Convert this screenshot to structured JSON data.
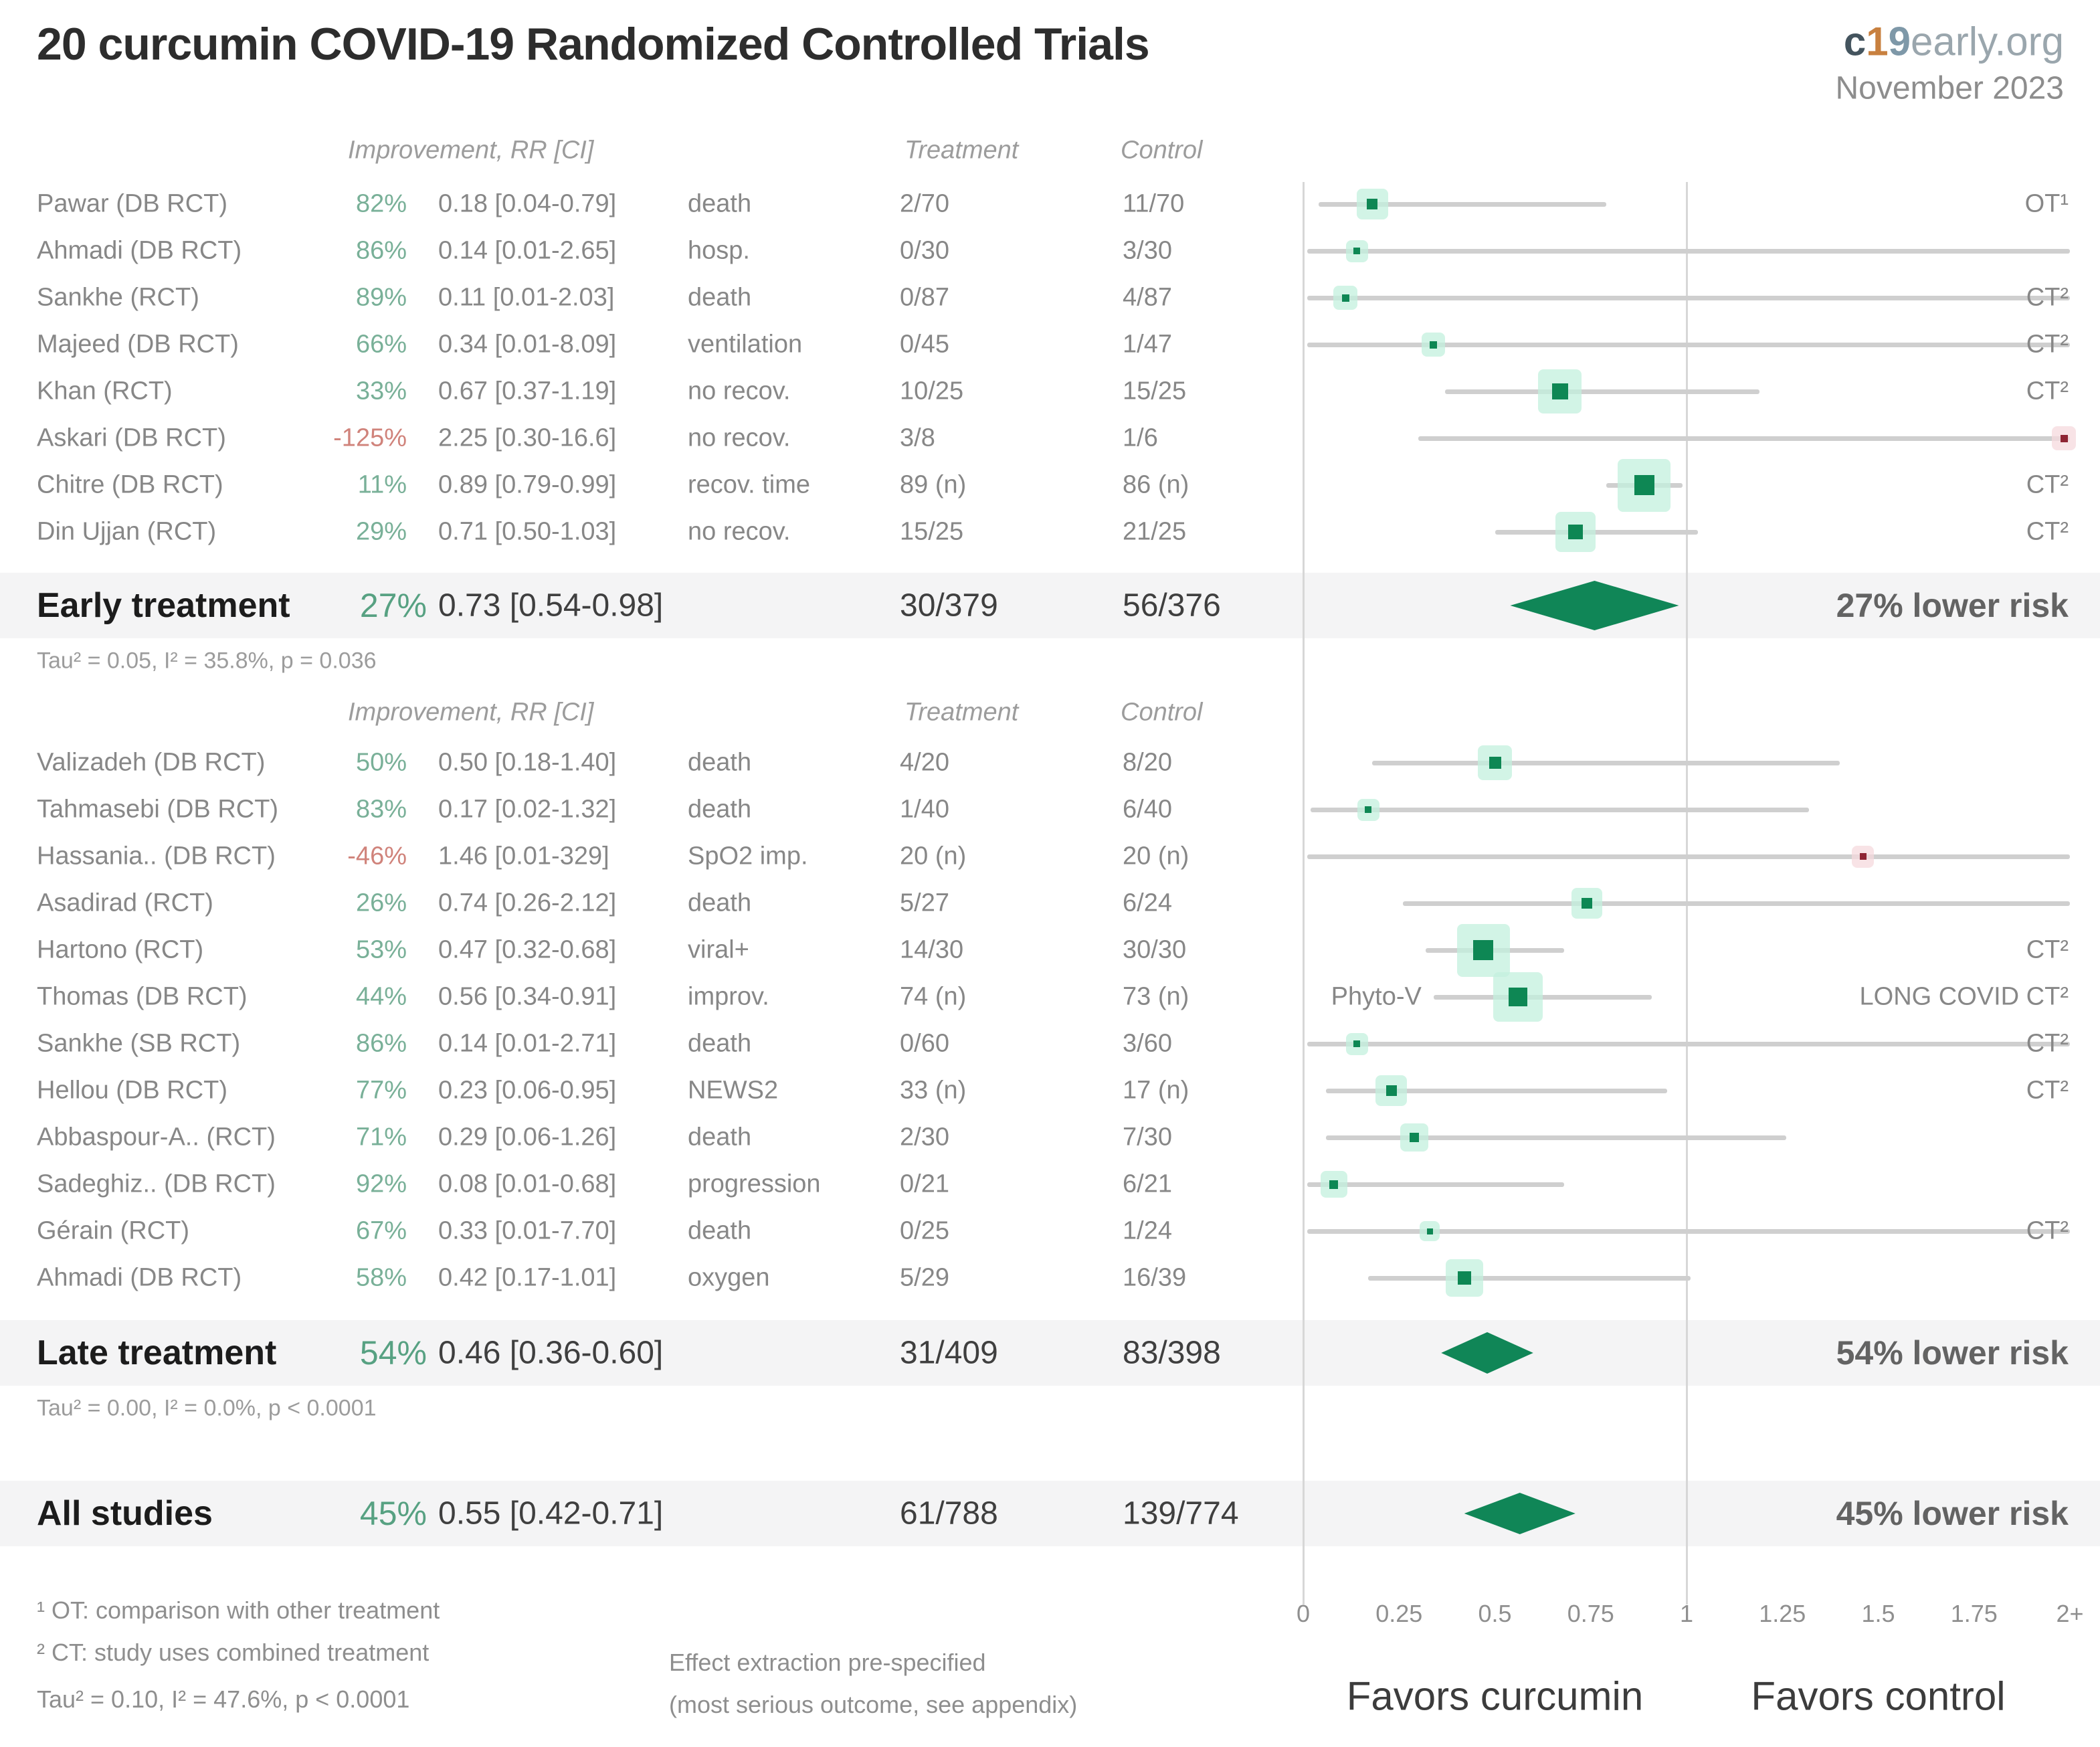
{
  "header": {
    "title": "20 curcumin COVID-19 Randomized Controlled Trials",
    "brand_c": "c",
    "brand_1": "1",
    "brand_9": "9",
    "brand_rest": "early.org",
    "date": "November 2023"
  },
  "column_headers": {
    "improvement": "Improvement, RR [CI]",
    "treatment": "Treatment",
    "control": "Control"
  },
  "colors": {
    "effect_green": "#0e8754",
    "effect_red": "#8e2433",
    "diamond_green": "#108657",
    "pct_green": "#79b098",
    "pct_red": "#d0837b",
    "summary_pct_green": "#57a182",
    "ci_line": "#cfcfcf",
    "glow_green": "#c3f0de",
    "glow_red": "#f6dade"
  },
  "chart_data": {
    "type": "scatter",
    "variant": "forest-plot",
    "title": "20 curcumin COVID-19 Randomized Controlled Trials",
    "xlim": [
      0,
      2
    ],
    "reference_line": 1,
    "grid": false,
    "x_axis": {
      "ticks": [
        "0",
        "0.25",
        "0.5",
        "0.75",
        "1",
        "1.25",
        "1.5",
        "1.75",
        "2+"
      ],
      "values": [
        0,
        0.25,
        0.5,
        0.75,
        1,
        1.25,
        1.5,
        1.75,
        2
      ]
    },
    "favors_left": "Favors curcumin",
    "favors_right": "Favors control",
    "sections": [
      {
        "name": "Early treatment",
        "studies": [
          {
            "study": "Pawar (DB RCT)",
            "improvement": "82%",
            "rr_ci": "0.18 [0.04-0.79]",
            "outcome": "death",
            "treatment": "2/70",
            "control": "11/70",
            "est": 0.18,
            "lo": 0.04,
            "hi": 0.79,
            "size": 16,
            "color": "green",
            "note": "OT¹"
          },
          {
            "study": "Ahmadi (DB RCT)",
            "improvement": "86%",
            "rr_ci": "0.14 [0.01-2.65]",
            "outcome": "hosp.",
            "treatment": "0/30",
            "control": "3/30",
            "est": 0.14,
            "lo": 0.01,
            "hi": 2.65,
            "size": 10,
            "color": "green",
            "note": ""
          },
          {
            "study": "Sankhe (RCT)",
            "improvement": "89%",
            "rr_ci": "0.11 [0.01-2.03]",
            "outcome": "death",
            "treatment": "0/87",
            "control": "4/87",
            "est": 0.11,
            "lo": 0.01,
            "hi": 2.03,
            "size": 11,
            "color": "green",
            "note": "CT²"
          },
          {
            "study": "Majeed (DB RCT)",
            "improvement": "66%",
            "rr_ci": "0.34 [0.01-8.09]",
            "outcome": "ventilation",
            "treatment": "0/45",
            "control": "1/47",
            "est": 0.34,
            "lo": 0.01,
            "hi": 8.09,
            "size": 11,
            "color": "green",
            "note": "CT²"
          },
          {
            "study": "Khan (RCT)",
            "improvement": "33%",
            "rr_ci": "0.67 [0.37-1.19]",
            "outcome": "no recov.",
            "treatment": "10/25",
            "control": "15/25",
            "est": 0.67,
            "lo": 0.37,
            "hi": 1.19,
            "size": 24,
            "color": "green",
            "note": "CT²"
          },
          {
            "study": "Askari (DB RCT)",
            "improvement": "-125%",
            "rr_ci": "2.25 [0.30-16.6]",
            "outcome": "no recov.",
            "treatment": "3/8",
            "control": "1/6",
            "est": 2.25,
            "lo": 0.3,
            "hi": 16.6,
            "size": 11,
            "color": "red",
            "note": ""
          },
          {
            "study": "Chitre (DB RCT)",
            "improvement": "11%",
            "rr_ci": "0.89 [0.79-0.99]",
            "outcome": "recov. time",
            "treatment": "89 (n)",
            "control": "86 (n)",
            "est": 0.89,
            "lo": 0.79,
            "hi": 0.99,
            "size": 30,
            "color": "green",
            "note": "CT²"
          },
          {
            "study": "Din Ujjan (RCT)",
            "improvement": "29%",
            "rr_ci": "0.71 [0.50-1.03]",
            "outcome": "no recov.",
            "treatment": "15/25",
            "control": "21/25",
            "est": 0.71,
            "lo": 0.5,
            "hi": 1.03,
            "size": 22,
            "color": "green",
            "note": "CT²"
          }
        ],
        "summary": {
          "label": "Early treatment",
          "improvement": "27%",
          "rr_ci": "0.73 [0.54-0.98]",
          "treatment": "30/379",
          "control": "56/376",
          "risk_label": "27% lower risk",
          "est": 0.73,
          "lo": 0.54,
          "hi": 0.98
        },
        "heterogeneity": "Tau² = 0.05, I² = 35.8%, p = 0.036"
      },
      {
        "name": "Late treatment",
        "studies": [
          {
            "study": "Valizadeh (DB RCT)",
            "improvement": "50%",
            "rr_ci": "0.50 [0.18-1.40]",
            "outcome": "death",
            "treatment": "4/20",
            "control": "8/20",
            "est": 0.5,
            "lo": 0.18,
            "hi": 1.4,
            "size": 18,
            "color": "green",
            "note": ""
          },
          {
            "study": "Tahmasebi (DB RCT)",
            "improvement": "83%",
            "rr_ci": "0.17 [0.02-1.32]",
            "outcome": "death",
            "treatment": "1/40",
            "control": "6/40",
            "est": 0.17,
            "lo": 0.02,
            "hi": 1.32,
            "size": 10,
            "color": "green",
            "note": ""
          },
          {
            "study": "Hassania.. (DB RCT)",
            "improvement": "-46%",
            "rr_ci": "1.46 [0.01-329]",
            "outcome": "SpO2 imp.",
            "treatment": "20 (n)",
            "control": "20 (n)",
            "est": 1.46,
            "lo": 0.01,
            "hi": 329,
            "size": 10,
            "color": "red",
            "note": ""
          },
          {
            "study": "Asadirad (RCT)",
            "improvement": "26%",
            "rr_ci": "0.74 [0.26-2.12]",
            "outcome": "death",
            "treatment": "5/27",
            "control": "6/24",
            "est": 0.74,
            "lo": 0.26,
            "hi": 2.12,
            "size": 16,
            "color": "green",
            "note": ""
          },
          {
            "study": "Hartono (RCT)",
            "improvement": "53%",
            "rr_ci": "0.47 [0.32-0.68]",
            "outcome": "viral+",
            "treatment": "14/30",
            "control": "30/30",
            "est": 0.47,
            "lo": 0.32,
            "hi": 0.68,
            "size": 30,
            "color": "green",
            "note": "CT²"
          },
          {
            "study": "Thomas (DB RCT)",
            "improvement": "44%",
            "rr_ci": "0.56 [0.34-0.91]",
            "outcome": "improv.",
            "treatment": "74 (n)",
            "control": "73 (n)",
            "est": 0.56,
            "lo": 0.34,
            "hi": 0.91,
            "size": 28,
            "color": "green",
            "note": "LONG COVID CT²",
            "left_label": "Phyto-V"
          },
          {
            "study": "Sankhe (SB RCT)",
            "improvement": "86%",
            "rr_ci": "0.14 [0.01-2.71]",
            "outcome": "death",
            "treatment": "0/60",
            "control": "3/60",
            "est": 0.14,
            "lo": 0.01,
            "hi": 2.71,
            "size": 10,
            "color": "green",
            "note": "CT²"
          },
          {
            "study": "Hellou (DB RCT)",
            "improvement": "77%",
            "rr_ci": "0.23 [0.06-0.95]",
            "outcome": "NEWS2",
            "treatment": "33 (n)",
            "control": "17 (n)",
            "est": 0.23,
            "lo": 0.06,
            "hi": 0.95,
            "size": 16,
            "color": "green",
            "note": "CT²"
          },
          {
            "study": "Abbaspour-A.. (RCT)",
            "improvement": "71%",
            "rr_ci": "0.29 [0.06-1.26]",
            "outcome": "death",
            "treatment": "2/30",
            "control": "7/30",
            "est": 0.29,
            "lo": 0.06,
            "hi": 1.26,
            "size": 14,
            "color": "green",
            "note": ""
          },
          {
            "study": "Sadeghiz.. (DB RCT)",
            "improvement": "92%",
            "rr_ci": "0.08 [0.01-0.68]",
            "outcome": "progression",
            "treatment": "0/21",
            "control": "6/21",
            "est": 0.08,
            "lo": 0.01,
            "hi": 0.68,
            "size": 13,
            "color": "green",
            "note": ""
          },
          {
            "study": "Gérain (RCT)",
            "improvement": "67%",
            "rr_ci": "0.33 [0.01-7.70]",
            "outcome": "death",
            "treatment": "0/25",
            "control": "1/24",
            "est": 0.33,
            "lo": 0.01,
            "hi": 7.7,
            "size": 9,
            "color": "green",
            "note": "CT²"
          },
          {
            "study": "Ahmadi (DB RCT)",
            "improvement": "58%",
            "rr_ci": "0.42 [0.17-1.01]",
            "outcome": "oxygen",
            "treatment": "5/29",
            "control": "16/39",
            "est": 0.42,
            "lo": 0.17,
            "hi": 1.01,
            "size": 20,
            "color": "green",
            "note": ""
          }
        ],
        "summary": {
          "label": "Late treatment",
          "improvement": "54%",
          "rr_ci": "0.46 [0.36-0.60]",
          "treatment": "31/409",
          "control": "83/398",
          "risk_label": "54% lower risk",
          "est": 0.46,
          "lo": 0.36,
          "hi": 0.6
        },
        "heterogeneity": "Tau² = 0.00, I² = 0.0%, p < 0.0001"
      }
    ],
    "overall": {
      "label": "All studies",
      "improvement": "45%",
      "rr_ci": "0.55 [0.42-0.71]",
      "treatment": "61/788",
      "control": "139/774",
      "risk_label": "45% lower risk",
      "est": 0.55,
      "lo": 0.42,
      "hi": 0.71
    }
  },
  "footnotes": {
    "left": [
      "¹ OT: comparison with other treatment",
      "² CT: study uses combined treatment",
      "Tau² = 0.10, I² = 47.6%, p < 0.0001"
    ],
    "middle": [
      "Effect extraction pre-specified",
      "(most serious outcome, see appendix)"
    ]
  }
}
